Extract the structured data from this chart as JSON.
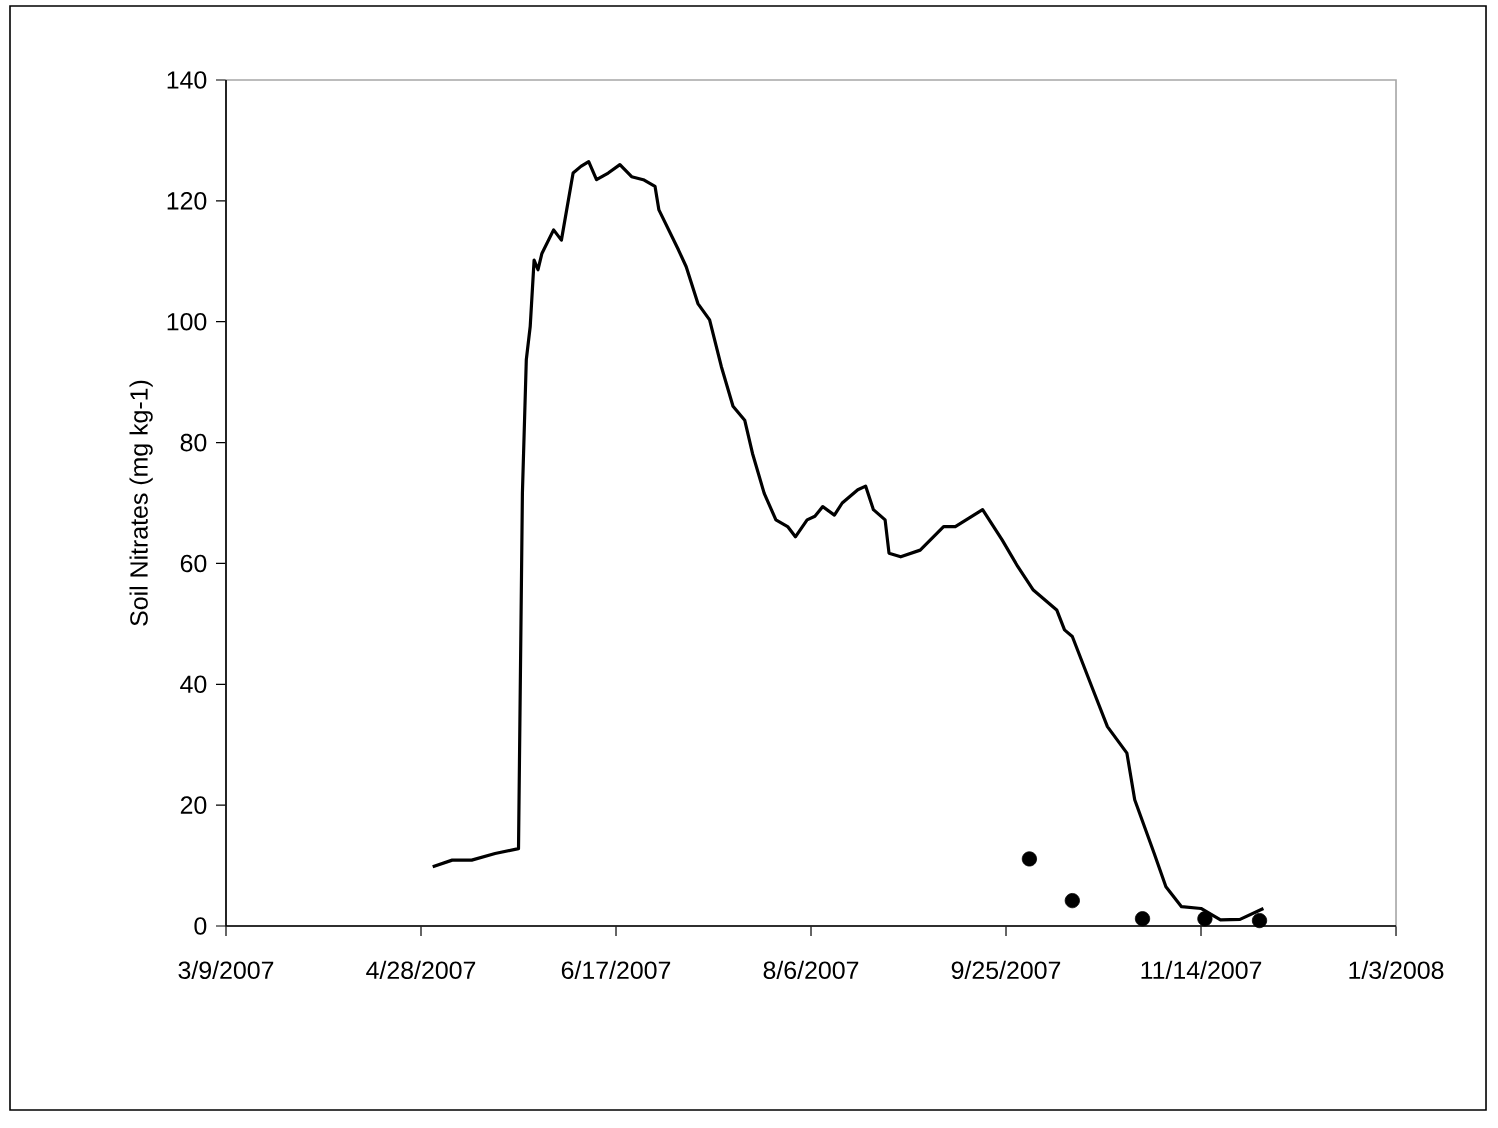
{
  "chart_data": {
    "type": "line",
    "ylabel": "Soil Nitrates (mg kg-1)",
    "xlim": [
      "2007-03-09",
      "2008-01-03"
    ],
    "xticks": [
      {
        "value": "2007-03-09",
        "label": "3/9/2007"
      },
      {
        "value": "2007-04-28",
        "label": "4/28/2007"
      },
      {
        "value": "2007-06-17",
        "label": "6/17/2007"
      },
      {
        "value": "2007-08-06",
        "label": "8/6/2007"
      },
      {
        "value": "2007-09-25",
        "label": "9/25/2007"
      },
      {
        "value": "2007-11-14",
        "label": "11/14/2007"
      },
      {
        "value": "2008-01-03",
        "label": "1/3/2008"
      }
    ],
    "ylim": [
      0,
      140
    ],
    "yticks": [
      0,
      20,
      40,
      60,
      80,
      100,
      120,
      140
    ],
    "series": [
      {
        "color": "#000000",
        "marker": "none",
        "x": [
          "2007-05-01",
          "2007-05-06",
          "2007-05-11",
          "2007-05-17",
          "2007-05-23",
          "2007-05-24",
          "2007-05-25",
          "2007-05-26",
          "2007-05-27",
          "2007-05-28",
          "2007-05-29",
          "2007-06-01",
          "2007-06-03",
          "2007-06-06",
          "2007-06-08",
          "2007-06-10",
          "2007-06-12",
          "2007-06-15",
          "2007-06-18",
          "2007-06-21",
          "2007-06-24",
          "2007-06-27",
          "2007-06-28",
          "2007-07-03",
          "2007-07-05",
          "2007-07-08",
          "2007-07-11",
          "2007-07-14",
          "2007-07-17",
          "2007-07-20",
          "2007-07-22",
          "2007-07-25",
          "2007-07-28",
          "2007-07-31",
          "2007-08-02",
          "2007-08-05",
          "2007-08-07",
          "2007-08-09",
          "2007-08-12",
          "2007-08-14",
          "2007-08-18",
          "2007-08-20",
          "2007-08-22",
          "2007-08-25",
          "2007-08-26",
          "2007-08-29",
          "2007-09-03",
          "2007-09-09",
          "2007-09-12",
          "2007-09-19",
          "2007-09-24",
          "2007-09-28",
          "2007-10-02",
          "2007-10-08",
          "2007-10-10",
          "2007-10-12",
          "2007-10-17",
          "2007-10-21",
          "2007-10-26",
          "2007-10-28",
          "2007-11-02",
          "2007-11-05",
          "2007-11-09",
          "2007-11-14",
          "2007-11-19",
          "2007-11-24",
          "2007-11-30"
        ],
        "values": [
          9.8,
          10.9,
          10.9,
          12.0,
          12.8,
          71.6,
          93.7,
          99.2,
          110.2,
          108.6,
          111.3,
          115.2,
          113.5,
          124.6,
          125.7,
          126.5,
          123.5,
          124.6,
          126.0,
          124.0,
          123.5,
          122.4,
          118.5,
          111.9,
          109.1,
          103.0,
          100.3,
          92.6,
          86.0,
          83.7,
          78.2,
          71.6,
          67.2,
          66.1,
          64.4,
          67.2,
          67.8,
          69.4,
          68.0,
          70.0,
          72.2,
          72.8,
          68.9,
          67.2,
          61.7,
          61.1,
          62.2,
          66.1,
          66.1,
          68.9,
          63.9,
          59.5,
          55.6,
          52.3,
          49.0,
          47.9,
          39.6,
          33.0,
          28.6,
          20.9,
          12.0,
          6.5,
          3.2,
          2.9,
          1.0,
          1.1,
          2.9
        ]
      },
      {
        "type": "scatter",
        "color": "#000000",
        "marker": "circle",
        "x": [
          "2007-10-01",
          "2007-10-12",
          "2007-10-30",
          "2007-11-15",
          "2007-11-29"
        ],
        "values": [
          11.1,
          4.2,
          1.2,
          1.2,
          0.9
        ]
      }
    ]
  }
}
